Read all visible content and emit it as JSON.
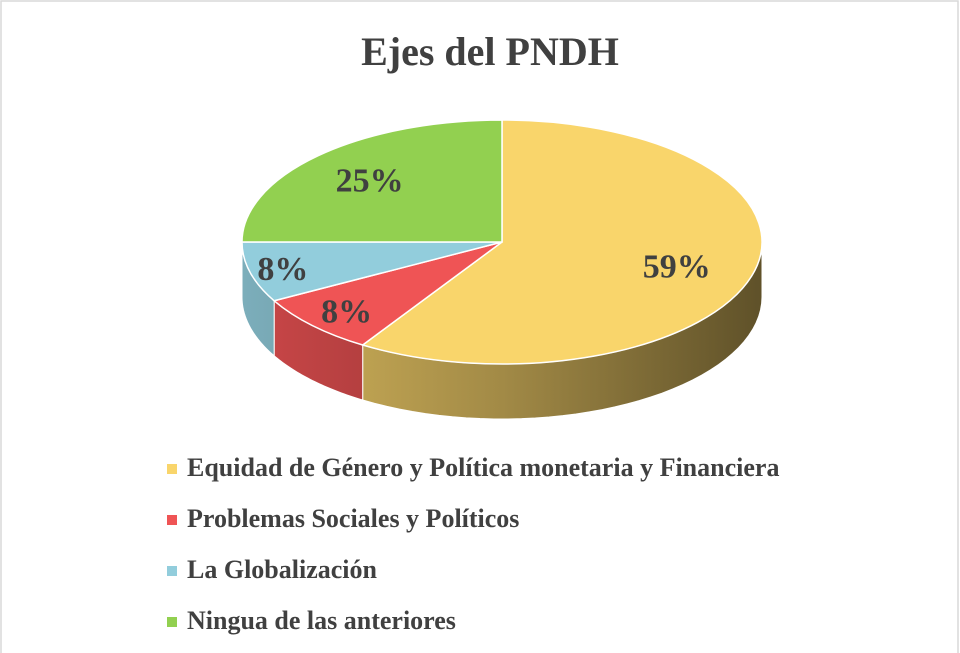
{
  "chart_data": {
    "type": "pie",
    "title": "Ejes del PNDH",
    "categories": [
      "Equidad de Género y Política monetaria y Financiera",
      "Problemas Sociales y Políticos",
      "La Globalización",
      "Ningua de las anteriores"
    ],
    "values": [
      59,
      8,
      8,
      25
    ],
    "value_labels": [
      "59%",
      "8%",
      "8%",
      "25%"
    ],
    "colors": [
      "#F9D56B",
      "#EF5455",
      "#92CDDC",
      "#92D050"
    ],
    "legend": "bottom"
  }
}
